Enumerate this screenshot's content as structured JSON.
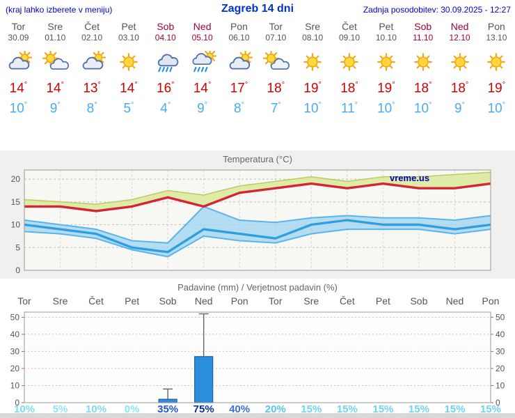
{
  "header": {
    "left_note": "(kraj lahko izberete v meniju)",
    "title": "Zagreb 14 dni",
    "updated": "Zadnja posodobitev: 30.09.2025 - 12:27"
  },
  "units": {
    "degree": "°"
  },
  "colors": {
    "accent_blue": "#0000cc",
    "weekday": "#555555",
    "weekend": "#a50034",
    "tmax": "#d00000",
    "tmin": "#4aabf0",
    "bar": "#2b8fe0"
  },
  "days": [
    {
      "name": "Tor",
      "date": "30.09",
      "weekend": false,
      "icon": "cloud-sun",
      "tmax": "14",
      "tmin": "10"
    },
    {
      "name": "Sre",
      "date": "01.10",
      "weekend": false,
      "icon": "sun-cloud",
      "tmax": "14",
      "tmin": "9"
    },
    {
      "name": "Čet",
      "date": "02.10",
      "weekend": false,
      "icon": "cloud-sun",
      "tmax": "13",
      "tmin": "8"
    },
    {
      "name": "Pet",
      "date": "03.10",
      "weekend": false,
      "icon": "sun",
      "tmax": "14",
      "tmin": "5"
    },
    {
      "name": "Sob",
      "date": "04.10",
      "weekend": true,
      "icon": "rain",
      "tmax": "16",
      "tmin": "4"
    },
    {
      "name": "Ned",
      "date": "05.10",
      "weekend": true,
      "icon": "rain-sun",
      "tmax": "14",
      "tmin": "9"
    },
    {
      "name": "Pon",
      "date": "06.10",
      "weekend": false,
      "icon": "cloud-sun",
      "tmax": "17",
      "tmin": "8"
    },
    {
      "name": "Tor",
      "date": "07.10",
      "weekend": false,
      "icon": "sun-cloud",
      "tmax": "18",
      "tmin": "7"
    },
    {
      "name": "Sre",
      "date": "08.10",
      "weekend": false,
      "icon": "sun",
      "tmax": "19",
      "tmin": "10"
    },
    {
      "name": "Čet",
      "date": "09.10",
      "weekend": false,
      "icon": "sun",
      "tmax": "18",
      "tmin": "11"
    },
    {
      "name": "Pet",
      "date": "10.10",
      "weekend": false,
      "icon": "sun",
      "tmax": "19",
      "tmin": "10"
    },
    {
      "name": "Sob",
      "date": "11.10",
      "weekend": true,
      "icon": "sun",
      "tmax": "18",
      "tmin": "10"
    },
    {
      "name": "Ned",
      "date": "12.10",
      "weekend": true,
      "icon": "sun",
      "tmax": "18",
      "tmin": "9"
    },
    {
      "name": "Pon",
      "date": "13.10",
      "weekend": false,
      "icon": "sun",
      "tmax": "19",
      "tmin": "10"
    }
  ],
  "chart_data": [
    {
      "type": "area",
      "title": "Temperatura (°C)",
      "watermark": "vreme.us",
      "x": [
        "Tor",
        "Sre",
        "Čet",
        "Pet",
        "Sob",
        "Ned",
        "Pon",
        "Tor",
        "Sre",
        "Čet",
        "Pet",
        "Sob",
        "Ned",
        "Pon"
      ],
      "ylim": [
        0,
        22
      ],
      "yticks": [
        0,
        5,
        10,
        15,
        20
      ],
      "grid": true,
      "legend": "none",
      "series": [
        {
          "name": "tmax",
          "color": "#d22535",
          "values": [
            14,
            14,
            13,
            14,
            16,
            14,
            17,
            18,
            19,
            18,
            19,
            18,
            18,
            19
          ]
        },
        {
          "name": "tmax_upper",
          "color": "#b8cc60",
          "values": [
            15.5,
            15,
            14.5,
            15.5,
            17.5,
            16.5,
            18.5,
            19.5,
            20.5,
            19.5,
            20.5,
            20.5,
            21,
            21.5
          ]
        },
        {
          "name": "tmin",
          "color": "#2f9fe0",
          "values": [
            10,
            9,
            8,
            5,
            4,
            9,
            8,
            7,
            10,
            11,
            10,
            10,
            9,
            10
          ]
        },
        {
          "name": "tmin_upper",
          "color": "#5ab4ec",
          "values": [
            11,
            10,
            9,
            6.5,
            6,
            14,
            11,
            10.5,
            11.5,
            12,
            11.5,
            11.5,
            11,
            12
          ]
        },
        {
          "name": "tmin_lower",
          "color": "#5ab4ec",
          "values": [
            8.5,
            8,
            7,
            4.5,
            3,
            7.5,
            6.5,
            6,
            8,
            9,
            9,
            9,
            8,
            9
          ]
        }
      ]
    },
    {
      "type": "bar",
      "title": "Padavine (mm) / Verjetnost padavin (%)",
      "categories": [
        "Tor",
        "Sre",
        "Čet",
        "Pet",
        "Sob",
        "Ned",
        "Pon",
        "Tor",
        "Sre",
        "Čet",
        "Pet",
        "Sob",
        "Ned",
        "Pon"
      ],
      "values": [
        0,
        0,
        0,
        0,
        2,
        27,
        0,
        0,
        0,
        0,
        0,
        0,
        0,
        0
      ],
      "whiskers": [
        0,
        0,
        0,
        0,
        8,
        52,
        0,
        0,
        0,
        0,
        0,
        0,
        0,
        0
      ],
      "ylim": [
        0,
        53
      ],
      "yticks": [
        0,
        10,
        20,
        30,
        40,
        50
      ],
      "pop": [
        {
          "label": "10%",
          "color": "#7adcf0"
        },
        {
          "label": "5%",
          "color": "#8ce5f5"
        },
        {
          "label": "10%",
          "color": "#7adcf0"
        },
        {
          "label": "0%",
          "color": "#8ce5f5"
        },
        {
          "label": "35%",
          "color": "#2255cc"
        },
        {
          "label": "75%",
          "color": "#0b2f9e"
        },
        {
          "label": "40%",
          "color": "#3a6fd8"
        },
        {
          "label": "20%",
          "color": "#55c6ea"
        },
        {
          "label": "15%",
          "color": "#6fd4ee"
        },
        {
          "label": "15%",
          "color": "#6fd4ee"
        },
        {
          "label": "15%",
          "color": "#6fd4ee"
        },
        {
          "label": "15%",
          "color": "#6fd4ee"
        },
        {
          "label": "15%",
          "color": "#6fd4ee"
        },
        {
          "label": "15%",
          "color": "#6fd4ee"
        }
      ]
    }
  ]
}
